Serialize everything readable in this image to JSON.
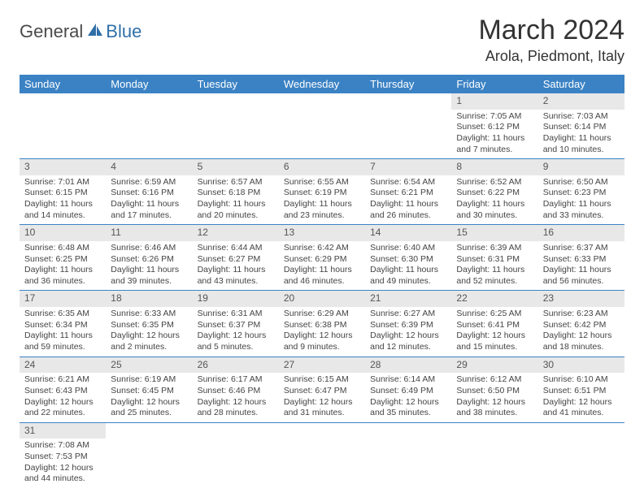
{
  "logo": {
    "general": "General",
    "blue": "Blue"
  },
  "title": "March 2024",
  "location": "Arola, Piedmont, Italy",
  "header_bg": "#3b82c4",
  "daynum_bg": "#e8e8e8",
  "rule_color": "#3b82c4",
  "weekdays": [
    "Sunday",
    "Monday",
    "Tuesday",
    "Wednesday",
    "Thursday",
    "Friday",
    "Saturday"
  ],
  "weeks": [
    [
      null,
      null,
      null,
      null,
      null,
      {
        "n": "1",
        "sr": "Sunrise: 7:05 AM",
        "ss": "Sunset: 6:12 PM",
        "dl": "Daylight: 11 hours and 7 minutes."
      },
      {
        "n": "2",
        "sr": "Sunrise: 7:03 AM",
        "ss": "Sunset: 6:14 PM",
        "dl": "Daylight: 11 hours and 10 minutes."
      }
    ],
    [
      {
        "n": "3",
        "sr": "Sunrise: 7:01 AM",
        "ss": "Sunset: 6:15 PM",
        "dl": "Daylight: 11 hours and 14 minutes."
      },
      {
        "n": "4",
        "sr": "Sunrise: 6:59 AM",
        "ss": "Sunset: 6:16 PM",
        "dl": "Daylight: 11 hours and 17 minutes."
      },
      {
        "n": "5",
        "sr": "Sunrise: 6:57 AM",
        "ss": "Sunset: 6:18 PM",
        "dl": "Daylight: 11 hours and 20 minutes."
      },
      {
        "n": "6",
        "sr": "Sunrise: 6:55 AM",
        "ss": "Sunset: 6:19 PM",
        "dl": "Daylight: 11 hours and 23 minutes."
      },
      {
        "n": "7",
        "sr": "Sunrise: 6:54 AM",
        "ss": "Sunset: 6:21 PM",
        "dl": "Daylight: 11 hours and 26 minutes."
      },
      {
        "n": "8",
        "sr": "Sunrise: 6:52 AM",
        "ss": "Sunset: 6:22 PM",
        "dl": "Daylight: 11 hours and 30 minutes."
      },
      {
        "n": "9",
        "sr": "Sunrise: 6:50 AM",
        "ss": "Sunset: 6:23 PM",
        "dl": "Daylight: 11 hours and 33 minutes."
      }
    ],
    [
      {
        "n": "10",
        "sr": "Sunrise: 6:48 AM",
        "ss": "Sunset: 6:25 PM",
        "dl": "Daylight: 11 hours and 36 minutes."
      },
      {
        "n": "11",
        "sr": "Sunrise: 6:46 AM",
        "ss": "Sunset: 6:26 PM",
        "dl": "Daylight: 11 hours and 39 minutes."
      },
      {
        "n": "12",
        "sr": "Sunrise: 6:44 AM",
        "ss": "Sunset: 6:27 PM",
        "dl": "Daylight: 11 hours and 43 minutes."
      },
      {
        "n": "13",
        "sr": "Sunrise: 6:42 AM",
        "ss": "Sunset: 6:29 PM",
        "dl": "Daylight: 11 hours and 46 minutes."
      },
      {
        "n": "14",
        "sr": "Sunrise: 6:40 AM",
        "ss": "Sunset: 6:30 PM",
        "dl": "Daylight: 11 hours and 49 minutes."
      },
      {
        "n": "15",
        "sr": "Sunrise: 6:39 AM",
        "ss": "Sunset: 6:31 PM",
        "dl": "Daylight: 11 hours and 52 minutes."
      },
      {
        "n": "16",
        "sr": "Sunrise: 6:37 AM",
        "ss": "Sunset: 6:33 PM",
        "dl": "Daylight: 11 hours and 56 minutes."
      }
    ],
    [
      {
        "n": "17",
        "sr": "Sunrise: 6:35 AM",
        "ss": "Sunset: 6:34 PM",
        "dl": "Daylight: 11 hours and 59 minutes."
      },
      {
        "n": "18",
        "sr": "Sunrise: 6:33 AM",
        "ss": "Sunset: 6:35 PM",
        "dl": "Daylight: 12 hours and 2 minutes."
      },
      {
        "n": "19",
        "sr": "Sunrise: 6:31 AM",
        "ss": "Sunset: 6:37 PM",
        "dl": "Daylight: 12 hours and 5 minutes."
      },
      {
        "n": "20",
        "sr": "Sunrise: 6:29 AM",
        "ss": "Sunset: 6:38 PM",
        "dl": "Daylight: 12 hours and 9 minutes."
      },
      {
        "n": "21",
        "sr": "Sunrise: 6:27 AM",
        "ss": "Sunset: 6:39 PM",
        "dl": "Daylight: 12 hours and 12 minutes."
      },
      {
        "n": "22",
        "sr": "Sunrise: 6:25 AM",
        "ss": "Sunset: 6:41 PM",
        "dl": "Daylight: 12 hours and 15 minutes."
      },
      {
        "n": "23",
        "sr": "Sunrise: 6:23 AM",
        "ss": "Sunset: 6:42 PM",
        "dl": "Daylight: 12 hours and 18 minutes."
      }
    ],
    [
      {
        "n": "24",
        "sr": "Sunrise: 6:21 AM",
        "ss": "Sunset: 6:43 PM",
        "dl": "Daylight: 12 hours and 22 minutes."
      },
      {
        "n": "25",
        "sr": "Sunrise: 6:19 AM",
        "ss": "Sunset: 6:45 PM",
        "dl": "Daylight: 12 hours and 25 minutes."
      },
      {
        "n": "26",
        "sr": "Sunrise: 6:17 AM",
        "ss": "Sunset: 6:46 PM",
        "dl": "Daylight: 12 hours and 28 minutes."
      },
      {
        "n": "27",
        "sr": "Sunrise: 6:15 AM",
        "ss": "Sunset: 6:47 PM",
        "dl": "Daylight: 12 hours and 31 minutes."
      },
      {
        "n": "28",
        "sr": "Sunrise: 6:14 AM",
        "ss": "Sunset: 6:49 PM",
        "dl": "Daylight: 12 hours and 35 minutes."
      },
      {
        "n": "29",
        "sr": "Sunrise: 6:12 AM",
        "ss": "Sunset: 6:50 PM",
        "dl": "Daylight: 12 hours and 38 minutes."
      },
      {
        "n": "30",
        "sr": "Sunrise: 6:10 AM",
        "ss": "Sunset: 6:51 PM",
        "dl": "Daylight: 12 hours and 41 minutes."
      }
    ],
    [
      {
        "n": "31",
        "sr": "Sunrise: 7:08 AM",
        "ss": "Sunset: 7:53 PM",
        "dl": "Daylight: 12 hours and 44 minutes."
      },
      null,
      null,
      null,
      null,
      null,
      null
    ]
  ]
}
